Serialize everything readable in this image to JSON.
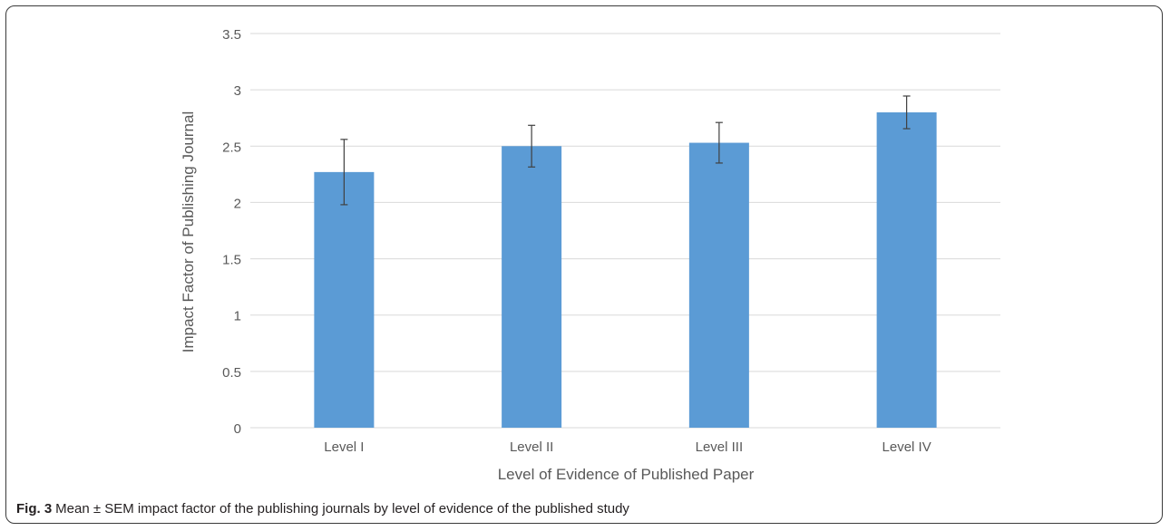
{
  "caption": {
    "label": "Fig. 3",
    "text": "Mean ± SEM impact factor of the publishing journals by level of evidence of the published study"
  },
  "chart_data": {
    "type": "bar",
    "categories": [
      "Level I",
      "Level II",
      "Level III",
      "Level IV"
    ],
    "values": [
      2.27,
      2.5,
      2.53,
      2.8
    ],
    "error": [
      0.29,
      0.185,
      0.18,
      0.145
    ],
    "xlabel": "Level of Evidence of Published Paper",
    "ylabel": "Impact Factor of Publishing Journal",
    "ylim": [
      0,
      3.5
    ],
    "yticks": [
      "0",
      "0.5",
      "1",
      "1.5",
      "2",
      "2.5",
      "3",
      "3.5"
    ],
    "grid": true,
    "colors": {
      "bar": "#5b9bd5",
      "grid": "#d9d9d9",
      "error": "#404040",
      "text": "#595959"
    }
  }
}
